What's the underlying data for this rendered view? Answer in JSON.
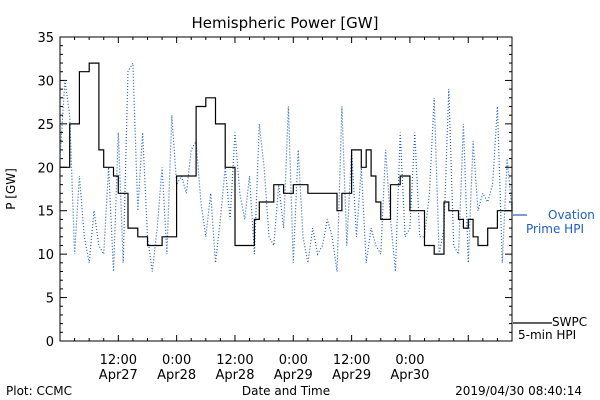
{
  "chart_data": {
    "type": "line",
    "title": "Hemispheric Power [GW]",
    "ylabel": "P [GW]",
    "xlabel": "Date and Time",
    "ylim": [
      0,
      35
    ],
    "yticks": [
      0,
      5,
      10,
      15,
      20,
      25,
      30,
      35
    ],
    "xlim": [
      "2019-04-27 00:00",
      "2019-04-30 21:00"
    ],
    "xticks": [
      {
        "time": "2019-04-27 12:00",
        "line1": "12:00",
        "line2": "Apr27"
      },
      {
        "time": "2019-04-28 00:00",
        "line1": "0:00",
        "line2": "Apr28"
      },
      {
        "time": "2019-04-28 12:00",
        "line1": "12:00",
        "line2": "Apr28"
      },
      {
        "time": "2019-04-29 00:00",
        "line1": "0:00",
        "line2": "Apr29"
      },
      {
        "time": "2019-04-29 12:00",
        "line1": "12:00",
        "line2": "Apr29"
      },
      {
        "time": "2019-04-30 00:00",
        "line1": "0:00",
        "line2": "Apr30"
      }
    ],
    "grid": false,
    "legend_position": "right",
    "series": [
      {
        "name_line1": "SWPC",
        "name_line2": "5-min HPI",
        "color": "#000000",
        "style": "solid",
        "x": [
          "2019-04-27 00:00",
          "2019-04-27 02:00",
          "2019-04-27 04:00",
          "2019-04-27 06:00",
          "2019-04-27 08:00",
          "2019-04-27 09:00",
          "2019-04-27 11:00",
          "2019-04-27 12:00",
          "2019-04-27 14:00",
          "2019-04-27 16:00",
          "2019-04-27 18:00",
          "2019-04-27 21:00",
          "2019-04-28 00:00",
          "2019-04-28 04:00",
          "2019-04-28 06:00",
          "2019-04-28 08:00",
          "2019-04-28 10:00",
          "2019-04-28 12:00",
          "2019-04-28 14:00",
          "2019-04-28 16:00",
          "2019-04-28 17:00",
          "2019-04-28 19:00",
          "2019-04-28 20:00",
          "2019-04-28 22:00",
          "2019-04-29 00:00",
          "2019-04-29 02:00",
          "2019-04-29 03:00",
          "2019-04-29 06:00",
          "2019-04-29 09:00",
          "2019-04-29 10:00",
          "2019-04-29 12:00",
          "2019-04-29 14:00",
          "2019-04-29 15:00",
          "2019-04-29 16:00",
          "2019-04-29 17:00",
          "2019-04-29 18:00",
          "2019-04-29 20:00",
          "2019-04-29 22:00",
          "2019-04-30 00:00",
          "2019-04-30 03:00",
          "2019-04-30 05:00",
          "2019-04-30 07:00",
          "2019-04-30 08:00",
          "2019-04-30 10:00",
          "2019-04-30 11:00",
          "2019-04-30 12:00",
          "2019-04-30 13:00",
          "2019-04-30 14:00",
          "2019-04-30 16:00",
          "2019-04-30 18:00",
          "2019-04-30 20:00",
          "2019-04-30 21:00"
        ],
        "values": [
          20,
          25,
          31,
          32,
          22,
          20,
          19,
          17,
          13,
          12,
          11,
          12,
          19,
          27,
          28,
          25,
          20,
          11,
          11,
          14,
          16,
          16,
          18,
          17,
          18,
          18,
          17,
          17,
          15,
          17,
          22,
          20,
          22,
          19,
          16,
          14,
          18,
          19,
          15,
          11,
          10,
          16,
          15,
          14,
          13,
          14,
          12,
          11,
          13,
          15,
          15,
          16
        ]
      },
      {
        "name_line1": "Ovation",
        "name_line2": "Prime HPI",
        "color": "#1f5fbf",
        "style": "dotted",
        "x": [
          "2019-04-27 00:00",
          "2019-04-27 01:00",
          "2019-04-27 02:00",
          "2019-04-27 03:00",
          "2019-04-27 04:00",
          "2019-04-27 05:00",
          "2019-04-27 06:00",
          "2019-04-27 07:00",
          "2019-04-27 08:00",
          "2019-04-27 09:00",
          "2019-04-27 10:00",
          "2019-04-27 11:00",
          "2019-04-27 12:00",
          "2019-04-27 13:00",
          "2019-04-27 14:00",
          "2019-04-27 15:00",
          "2019-04-27 16:00",
          "2019-04-27 17:00",
          "2019-04-27 18:00",
          "2019-04-27 19:00",
          "2019-04-27 20:00",
          "2019-04-27 21:00",
          "2019-04-27 22:00",
          "2019-04-27 23:00",
          "2019-04-28 00:00",
          "2019-04-28 01:00",
          "2019-04-28 02:00",
          "2019-04-28 03:00",
          "2019-04-28 04:00",
          "2019-04-28 05:00",
          "2019-04-28 06:00",
          "2019-04-28 07:00",
          "2019-04-28 08:00",
          "2019-04-28 09:00",
          "2019-04-28 10:00",
          "2019-04-28 11:00",
          "2019-04-28 12:00",
          "2019-04-28 13:00",
          "2019-04-28 14:00",
          "2019-04-28 15:00",
          "2019-04-28 16:00",
          "2019-04-28 17:00",
          "2019-04-28 18:00",
          "2019-04-28 19:00",
          "2019-04-28 20:00",
          "2019-04-28 21:00",
          "2019-04-28 22:00",
          "2019-04-28 23:00",
          "2019-04-29 00:00",
          "2019-04-29 01:00",
          "2019-04-29 02:00",
          "2019-04-29 03:00",
          "2019-04-29 04:00",
          "2019-04-29 05:00",
          "2019-04-29 06:00",
          "2019-04-29 07:00",
          "2019-04-29 08:00",
          "2019-04-29 09:00",
          "2019-04-29 10:00",
          "2019-04-29 11:00",
          "2019-04-29 12:00",
          "2019-04-29 13:00",
          "2019-04-29 14:00",
          "2019-04-29 15:00",
          "2019-04-29 16:00",
          "2019-04-29 17:00",
          "2019-04-29 18:00",
          "2019-04-29 19:00",
          "2019-04-29 20:00",
          "2019-04-29 21:00",
          "2019-04-29 22:00",
          "2019-04-29 23:00",
          "2019-04-30 00:00",
          "2019-04-30 01:00",
          "2019-04-30 02:00",
          "2019-04-30 03:00",
          "2019-04-30 04:00",
          "2019-04-30 05:00",
          "2019-04-30 06:00",
          "2019-04-30 07:00",
          "2019-04-30 08:00",
          "2019-04-30 09:00",
          "2019-04-30 10:00",
          "2019-04-30 11:00",
          "2019-04-30 12:00",
          "2019-04-30 13:00",
          "2019-04-30 14:00",
          "2019-04-30 15:00",
          "2019-04-30 16:00",
          "2019-04-30 17:00",
          "2019-04-30 18:00",
          "2019-04-30 19:00",
          "2019-04-30 20:00",
          "2019-04-30 21:00"
        ],
        "values": [
          21,
          30,
          26,
          10,
          19,
          12,
          9,
          15,
          11,
          10,
          20,
          8,
          24,
          9,
          31,
          32,
          15,
          24,
          12,
          8,
          13,
          20,
          10,
          26,
          18,
          19,
          17,
          22,
          23,
          16,
          12,
          17,
          9,
          14,
          20,
          14,
          24,
          17,
          14,
          19,
          10,
          25,
          20,
          12,
          11,
          18,
          13,
          27,
          9,
          22,
          12,
          9,
          13,
          10,
          11,
          14,
          12,
          8,
          27,
          11,
          22,
          12,
          20,
          9,
          13,
          11,
          10,
          22,
          14,
          8,
          24,
          12,
          13,
          24,
          12,
          12,
          17,
          28,
          10,
          13,
          29,
          11,
          10,
          25,
          9,
          23,
          15,
          17,
          16,
          18,
          27,
          9,
          21,
          15
        ]
      }
    ],
    "footer_left": "Plot: CCMC",
    "footer_right": "2019/04/30 08:40:14"
  }
}
